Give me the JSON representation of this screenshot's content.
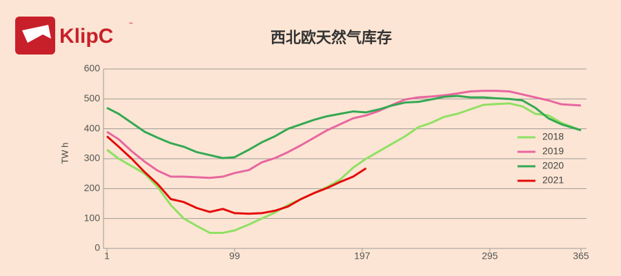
{
  "logo": {
    "text": "KlipC",
    "tm": "™"
  },
  "chart_data": {
    "type": "line",
    "title": "西北欧天然气库存",
    "ylabel": "TW h",
    "x": [
      1,
      10,
      20,
      30,
      40,
      50,
      60,
      70,
      80,
      90,
      99,
      110,
      120,
      130,
      140,
      150,
      160,
      170,
      180,
      190,
      200,
      210,
      220,
      230,
      240,
      250,
      260,
      270,
      280,
      290,
      300,
      310,
      320,
      330,
      340,
      350,
      365
    ],
    "xlim": [
      1,
      365
    ],
    "xticks": [
      1,
      99,
      197,
      295,
      365
    ],
    "ylim": [
      0,
      600
    ],
    "yticks": [
      0,
      100,
      200,
      300,
      400,
      500,
      600
    ],
    "grid": true,
    "legend": "right",
    "series": [
      {
        "name": "2018",
        "color": "#8fe062",
        "values": [
          330,
          300,
          275,
          250,
          205,
          145,
          100,
          75,
          52,
          52,
          60,
          80,
          100,
          120,
          145,
          165,
          185,
          205,
          230,
          270,
          300,
          325,
          350,
          375,
          405,
          420,
          440,
          450,
          465,
          480,
          483,
          485,
          475,
          450,
          445,
          420,
          395
        ]
      },
      {
        "name": "2019",
        "color": "#e8669f",
        "values": [
          390,
          365,
          325,
          290,
          260,
          240,
          240,
          238,
          236,
          240,
          252,
          262,
          288,
          302,
          322,
          345,
          370,
          395,
          415,
          435,
          445,
          460,
          480,
          498,
          505,
          508,
          512,
          518,
          525,
          527,
          527,
          525,
          515,
          505,
          495,
          482,
          478
        ]
      },
      {
        "name": "2020",
        "color": "#34a853",
        "values": [
          470,
          450,
          420,
          390,
          370,
          352,
          340,
          322,
          312,
          302,
          305,
          330,
          355,
          375,
          400,
          415,
          430,
          442,
          450,
          458,
          455,
          465,
          478,
          488,
          490,
          498,
          507,
          510,
          505,
          505,
          502,
          500,
          495,
          470,
          435,
          415,
          395
        ]
      },
      {
        "name": "2021",
        "color": "#e60a0a",
        "values": [
          375,
          340,
          300,
          255,
          215,
          165,
          155,
          135,
          122,
          132,
          118,
          116,
          118,
          126,
          140,
          165,
          185,
          202,
          222,
          240,
          268,
          null,
          null,
          null,
          null,
          null,
          null,
          null,
          null,
          null,
          null,
          null,
          null,
          null,
          null,
          null,
          null
        ]
      }
    ]
  }
}
